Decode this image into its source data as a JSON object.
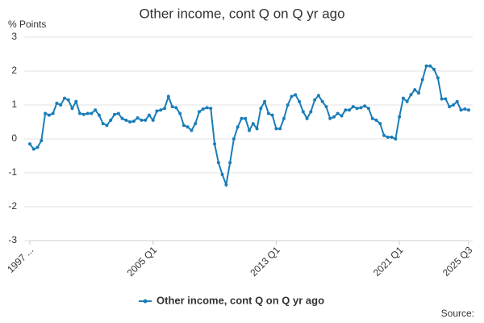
{
  "chart_data": {
    "type": "line",
    "title": "Other income, cont Q on Q yr ago",
    "y_label": "% Points",
    "source": "Source:",
    "categories": [
      "1997 ...",
      null,
      null,
      null,
      null,
      null,
      null,
      null,
      null,
      null,
      null,
      null,
      null,
      null,
      null,
      null,
      null,
      null,
      null,
      null,
      null,
      null,
      null,
      null,
      null,
      null,
      null,
      null,
      null,
      null,
      null,
      null,
      "2005 Q1",
      null,
      null,
      null,
      null,
      null,
      null,
      null,
      null,
      null,
      null,
      null,
      null,
      null,
      null,
      null,
      null,
      null,
      null,
      null,
      null,
      null,
      null,
      null,
      null,
      null,
      null,
      null,
      null,
      null,
      null,
      null,
      "2013 Q1",
      null,
      null,
      null,
      null,
      null,
      null,
      null,
      null,
      null,
      null,
      null,
      null,
      null,
      null,
      null,
      null,
      null,
      null,
      null,
      null,
      null,
      null,
      null,
      null,
      null,
      null,
      null,
      null,
      null,
      null,
      null,
      "2021 Q1",
      null,
      null,
      null,
      null,
      null,
      null,
      null,
      null,
      null,
      null,
      null,
      null,
      null,
      null,
      null,
      null,
      null,
      "2025 Q3"
    ],
    "series": [
      {
        "name": "Other income, cont Q on Q yr ago",
        "color": "#1a7db8",
        "values": [
          -0.15,
          -0.3,
          -0.25,
          -0.05,
          0.75,
          0.7,
          0.75,
          1.05,
          1.0,
          1.2,
          1.15,
          0.9,
          1.1,
          0.75,
          0.72,
          0.75,
          0.75,
          0.85,
          0.7,
          0.45,
          0.4,
          0.55,
          0.72,
          0.75,
          0.6,
          0.55,
          0.5,
          0.52,
          0.62,
          0.55,
          0.55,
          0.7,
          0.55,
          0.82,
          0.85,
          0.9,
          1.25,
          0.95,
          0.92,
          0.75,
          0.4,
          0.35,
          0.25,
          0.45,
          0.8,
          0.88,
          0.92,
          0.9,
          -0.15,
          -0.7,
          -1.05,
          -1.35,
          -0.7,
          0.0,
          0.35,
          0.6,
          0.6,
          0.25,
          0.45,
          0.3,
          0.9,
          1.1,
          0.75,
          0.7,
          0.3,
          0.3,
          0.6,
          1.0,
          1.25,
          1.3,
          1.1,
          0.8,
          0.6,
          0.8,
          1.15,
          1.28,
          1.1,
          0.95,
          0.6,
          0.65,
          0.75,
          0.68,
          0.85,
          0.85,
          0.95,
          0.9,
          0.92,
          0.97,
          0.9,
          0.6,
          0.55,
          0.45,
          0.1,
          0.05,
          0.05,
          0.0,
          0.65,
          1.2,
          1.1,
          1.3,
          1.45,
          1.35,
          1.75,
          2.15,
          2.15,
          2.05,
          1.8,
          1.18,
          1.18,
          0.95,
          1.0,
          1.1,
          0.85,
          0.88,
          0.85
        ]
      }
    ],
    "ylim": [
      -3,
      3
    ],
    "yticks": [
      -3,
      -2,
      -1,
      0,
      1,
      2,
      3
    ],
    "grid": true,
    "legend": "bottom"
  }
}
